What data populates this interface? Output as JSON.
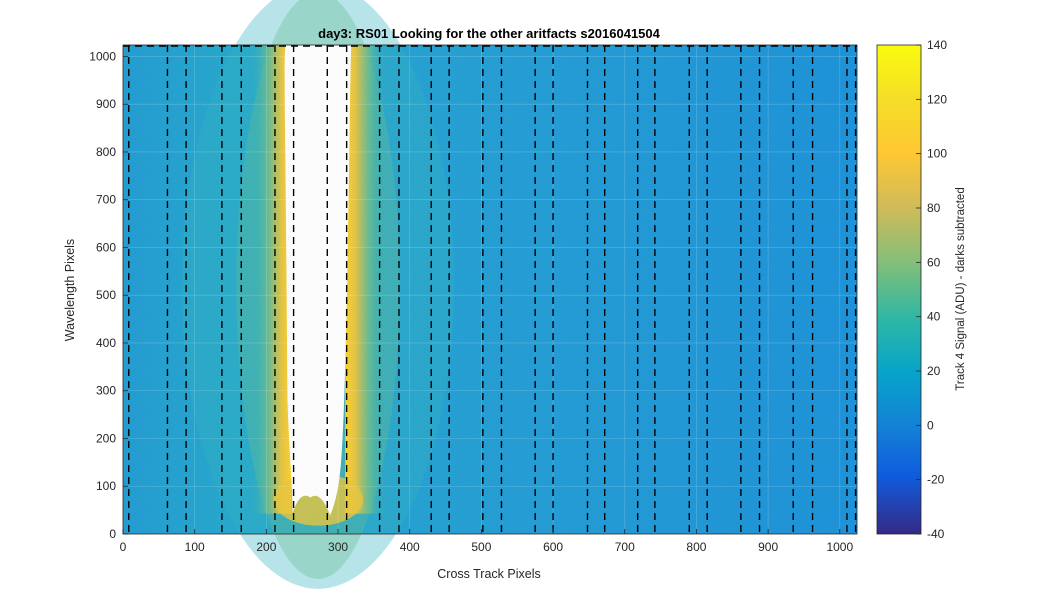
{
  "chart_data": {
    "type": "heatmap",
    "title": "day3: RS01  Looking for the other aritfacts  s2016041504",
    "xlabel": "Cross Track Pixels",
    "ylabel": "Wavelength Pixels",
    "xlim": [
      0,
      1024
    ],
    "ylim": [
      0,
      1024
    ],
    "xticks": [
      0,
      100,
      200,
      300,
      400,
      500,
      600,
      700,
      800,
      900,
      1000
    ],
    "yticks": [
      0,
      100,
      200,
      300,
      400,
      500,
      600,
      700,
      800,
      900,
      1000
    ],
    "grid": true,
    "colorbar": {
      "label": "Track 4 Signal (ADU) - darks subtracted",
      "range": [
        -40,
        140
      ],
      "ticks": [
        -40,
        -20,
        0,
        20,
        40,
        60,
        80,
        100,
        120,
        140
      ],
      "colormap": "parula"
    },
    "background_level": 10,
    "saturated_region": {
      "x_range": [
        235,
        310
      ],
      "y_range": [
        30,
        1024
      ]
    },
    "dashed_columns_x": [
      8,
      62,
      88,
      138,
      165,
      212,
      238,
      285,
      312,
      358,
      385,
      430,
      455,
      502,
      528,
      575,
      600,
      648,
      672,
      718,
      742,
      790,
      815,
      862,
      888,
      935,
      962,
      1010,
      1022
    ],
    "colors": {
      "background_mid": "#1f97d6",
      "edge_yellow": "#f4c52e",
      "saturated": "#ffffff"
    }
  }
}
